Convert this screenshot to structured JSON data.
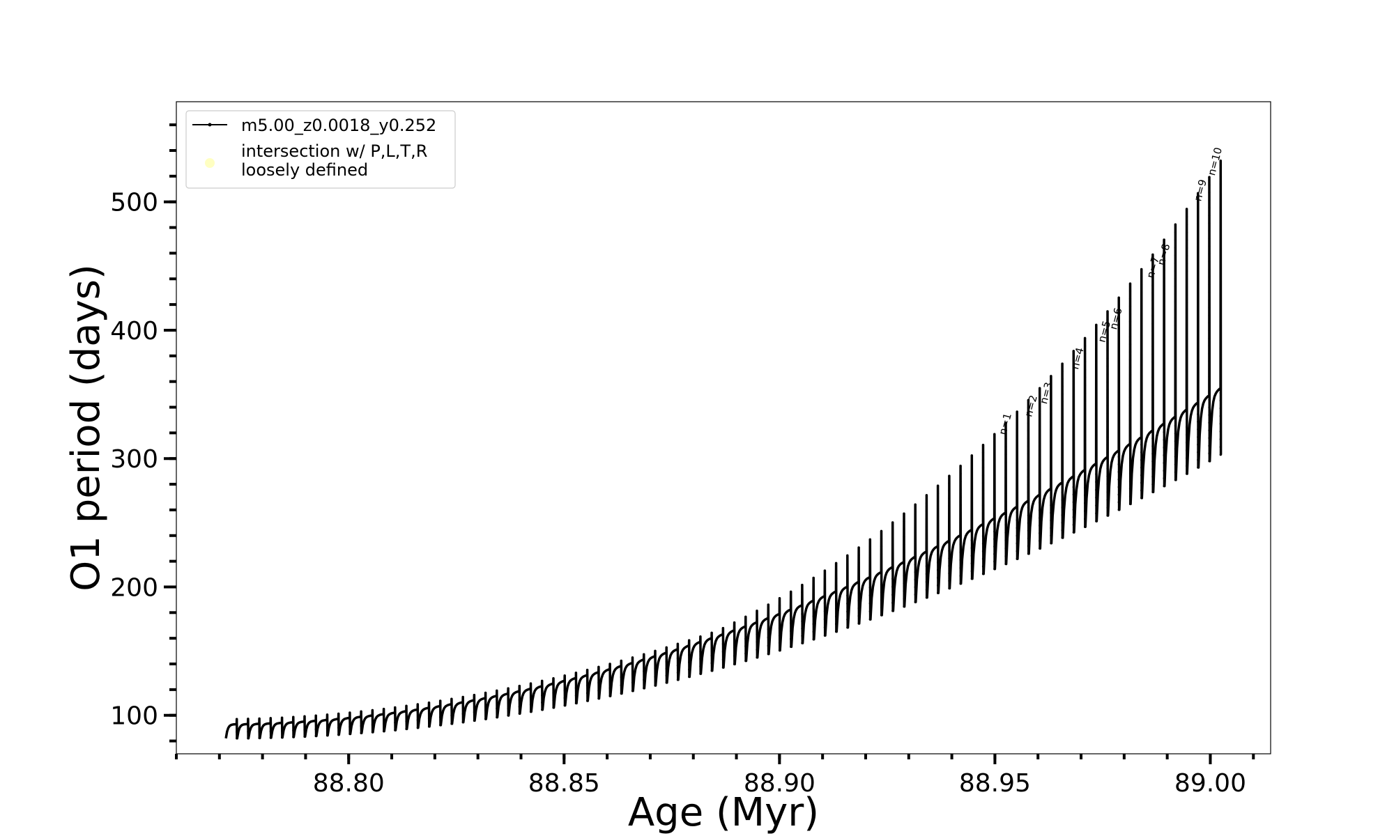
{
  "chart_data": {
    "type": "line",
    "xlabel": "Age (Myr)",
    "ylabel": "O1 period (days)",
    "xlim": [
      88.76,
      89.014
    ],
    "ylim": [
      70,
      578
    ],
    "xticks": [
      88.8,
      88.85,
      88.9,
      88.95,
      89.0
    ],
    "xtick_labels": [
      "88.80",
      "88.85",
      "88.90",
      "88.95",
      "89.00"
    ],
    "yticks": [
      100,
      200,
      300,
      400,
      500
    ],
    "ytick_labels": [
      "100",
      "200",
      "300",
      "400",
      "500"
    ],
    "x_minor_step": 0.01,
    "y_minor_step": 20,
    "grid": false,
    "legend_position": "upper-left",
    "legend": [
      {
        "label": "m5.00_z0.0018_y0.252",
        "marker": "line-dot",
        "color": "#000000"
      },
      {
        "label_line1": "intersection w/ P,L,T,R",
        "label_line2": "loosely defined",
        "marker": "circle",
        "color": "#ffff99"
      }
    ],
    "series": [
      {
        "name": "m5.00_z0.0018_y0.252",
        "color": "#000000",
        "pulse_cycles": {
          "x_start": 88.7715,
          "x_end": 89.0025,
          "count": 88,
          "baseline_start": 93,
          "baseline_end": 355,
          "spike_start": 96,
          "spike_end": 532,
          "dip_start": 82,
          "dip_end": 303
        }
      }
    ],
    "annotations": [
      {
        "text": "n=1",
        "x": 88.9525,
        "y": 318
      },
      {
        "text": "n=2",
        "x": 88.9585,
        "y": 332
      },
      {
        "text": "n=3",
        "x": 88.962,
        "y": 342
      },
      {
        "text": "n=4",
        "x": 88.9693,
        "y": 369
      },
      {
        "text": "n=5",
        "x": 88.9755,
        "y": 390
      },
      {
        "text": "n=6",
        "x": 88.9782,
        "y": 400
      },
      {
        "text": "n=7",
        "x": 88.9868,
        "y": 440
      },
      {
        "text": "n=8",
        "x": 88.9893,
        "y": 450
      },
      {
        "text": "n=9",
        "x": 88.9978,
        "y": 500
      },
      {
        "text": "n=10",
        "x": 89.001,
        "y": 520
      }
    ]
  }
}
